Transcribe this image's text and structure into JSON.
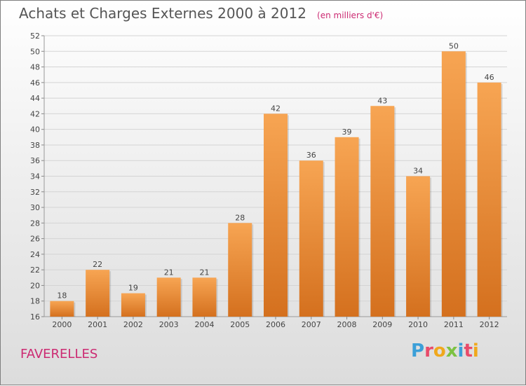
{
  "header": {
    "title": "Achats et Charges Externes 2000 à 2012",
    "subtitle": "(en milliers d'€)"
  },
  "footer": {
    "commune": "FAVERELLES",
    "logo_letters": [
      "P",
      "r",
      "o",
      "x",
      "i",
      "t",
      "i"
    ],
    "logo_colors": [
      "#3b9fd8",
      "#e84b6a",
      "#f0a81c",
      "#7cc242",
      "#3b9fd8",
      "#e84b6a",
      "#f0a81c"
    ]
  },
  "chart_data": {
    "type": "bar",
    "title": "Achats et Charges Externes 2000 à 2012",
    "subtitle": "(en milliers d'€)",
    "categories": [
      "2000",
      "2001",
      "2002",
      "2003",
      "2004",
      "2005",
      "2006",
      "2007",
      "2008",
      "2009",
      "2010",
      "2011",
      "2012"
    ],
    "values": [
      18,
      22,
      19,
      21,
      21,
      28,
      42,
      36,
      39,
      43,
      34,
      50,
      46
    ],
    "ylim": [
      16,
      52
    ],
    "yticks": [
      16,
      18,
      20,
      22,
      24,
      26,
      28,
      30,
      32,
      34,
      36,
      38,
      40,
      42,
      44,
      46,
      48,
      50,
      52
    ],
    "grid": true,
    "bar_color_top": "#f7a553",
    "bar_color_bottom": "#d4701e",
    "xlabel": "",
    "ylabel": ""
  }
}
